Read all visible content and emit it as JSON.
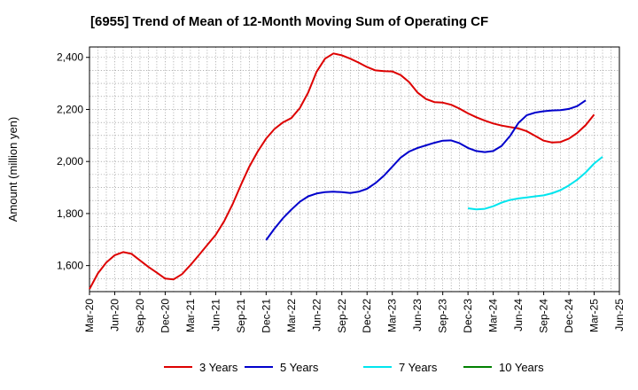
{
  "chart_data": {
    "type": "line",
    "title": "[6955]  Trend of Mean of 12-Month Moving Sum of Operating CF",
    "xlabel": "",
    "ylabel": "Amount (million yen)",
    "ylim": [
      1500,
      2440
    ],
    "yticks": [
      1600,
      1800,
      2000,
      2200,
      2400
    ],
    "ytick_labels": [
      "1,600",
      "1,800",
      "2,000",
      "2,200",
      "2,400"
    ],
    "grid": true,
    "legend_position": "bottom",
    "x_tick_labels": [
      "Mar-20",
      "Jun-20",
      "Sep-20",
      "Dec-20",
      "Mar-21",
      "Jun-21",
      "Sep-21",
      "Dec-21",
      "Mar-22",
      "Jun-22",
      "Sep-22",
      "Dec-22",
      "Mar-23",
      "Jun-23",
      "Sep-23",
      "Dec-23",
      "Mar-24",
      "Jun-24",
      "Sep-24",
      "Dec-24",
      "Mar-25",
      "Jun-25"
    ],
    "series": [
      {
        "name": "3 Years",
        "color": "#dd0000",
        "start_index": 0,
        "values": [
          1510,
          1570,
          1612,
          1640,
          1652,
          1645,
          1620,
          1595,
          1573,
          1550,
          1547,
          1567,
          1602,
          1640,
          1679,
          1718,
          1770,
          1835,
          1910,
          1980,
          2038,
          2088,
          2125,
          2150,
          2167,
          2205,
          2265,
          2345,
          2395,
          2415,
          2408,
          2395,
          2380,
          2363,
          2350,
          2347,
          2346,
          2332,
          2305,
          2265,
          2240,
          2228,
          2226,
          2218,
          2203,
          2185,
          2170,
          2157,
          2146,
          2138,
          2132,
          2127,
          2116,
          2098,
          2080,
          2073,
          2075,
          2088,
          2110,
          2140,
          2180
        ]
      },
      {
        "name": "5 Years",
        "color": "#0000cc",
        "start_index": 21,
        "values": [
          1698,
          1742,
          1782,
          1815,
          1845,
          1866,
          1877,
          1882,
          1884,
          1882,
          1879,
          1884,
          1895,
          1917,
          1945,
          1980,
          2015,
          2038,
          2052,
          2062,
          2072,
          2080,
          2081,
          2070,
          2052,
          2040,
          2036,
          2040,
          2060,
          2098,
          2148,
          2178,
          2188,
          2193,
          2196,
          2197,
          2202,
          2213,
          2235
        ]
      },
      {
        "name": "7 Years",
        "color": "#00e5ee",
        "start_index": 45,
        "values": [
          1820,
          1816,
          1818,
          1828,
          1842,
          1852,
          1858,
          1862,
          1866,
          1870,
          1878,
          1890,
          1908,
          1930,
          1958,
          1992,
          2018
        ]
      },
      {
        "name": "10 Years",
        "color": "#008000",
        "start_index": 0,
        "values": []
      }
    ]
  }
}
